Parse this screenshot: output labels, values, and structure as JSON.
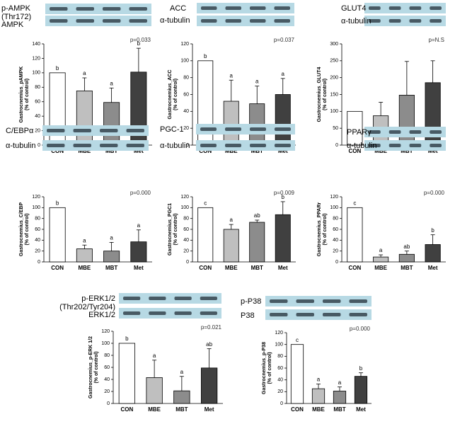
{
  "chart_data": [
    {
      "type": "bar",
      "blot_labels": [
        "p-AMPK",
        "(Thr172)",
        "AMPK"
      ],
      "y_label": [
        "Gastrocnemius_pAMPK",
        "(% of control)"
      ],
      "p_value": "p=0.033",
      "categories": [
        "CON",
        "MBE",
        "MBT",
        "Met"
      ],
      "values": [
        100,
        75,
        59,
        101
      ],
      "errors": [
        0,
        18,
        20,
        33
      ],
      "letters": [
        "b",
        "a",
        "a",
        "b"
      ],
      "colors": [
        "#ffffff",
        "#bfbfbf",
        "#8c8c8c",
        "#404040"
      ],
      "ylim": [
        0,
        140
      ],
      "yticks": [
        0,
        20,
        40,
        60,
        80,
        100,
        120,
        140
      ]
    },
    {
      "type": "bar",
      "blot_labels": [
        "ACC",
        "α-tubulin"
      ],
      "y_label": [
        "Gastrocnemius_ACC",
        "(% of control)"
      ],
      "p_value": "p=0.037",
      "categories": [
        "CON",
        "MBE",
        "MBT",
        "Met"
      ],
      "values": [
        100,
        52,
        49,
        60
      ],
      "errors": [
        0,
        25,
        21,
        19
      ],
      "letters": [
        "b",
        "a",
        "a",
        "a"
      ],
      "colors": [
        "#ffffff",
        "#bfbfbf",
        "#8c8c8c",
        "#404040"
      ],
      "ylim": [
        0,
        120
      ],
      "yticks": [
        0,
        20,
        40,
        60,
        80,
        100,
        120
      ]
    },
    {
      "type": "bar",
      "blot_labels": [
        "GLUT4",
        "α-tubulin"
      ],
      "y_label": [
        "Gastrocnemius_GLUT4",
        "(% of control)"
      ],
      "p_value": "p=N.S",
      "categories": [
        "CON",
        "MBE",
        "MBT",
        "Met"
      ],
      "values": [
        100,
        87,
        148,
        185
      ],
      "errors": [
        0,
        40,
        100,
        65
      ],
      "colors": [
        "#ffffff",
        "#bfbfbf",
        "#8c8c8c",
        "#404040"
      ],
      "ylim": [
        0,
        300
      ],
      "yticks": [
        0,
        50,
        100,
        150,
        200,
        250,
        300
      ]
    },
    {
      "type": "bar",
      "blot_labels": [
        "C/EBPα",
        "α-tubulin"
      ],
      "y_label": [
        "Gastrocnemius_C/EBP",
        "(% of control)"
      ],
      "p_value": "p=0.000",
      "categories": [
        "CON",
        "MBE",
        "MBT",
        "Met"
      ],
      "values": [
        100,
        24,
        20,
        37
      ],
      "errors": [
        0,
        7,
        16,
        22
      ],
      "letters": [
        "b",
        "a",
        "a",
        "a"
      ],
      "colors": [
        "#ffffff",
        "#bfbfbf",
        "#8c8c8c",
        "#404040"
      ],
      "ylim": [
        0,
        120
      ],
      "yticks": [
        0,
        20,
        40,
        60,
        80,
        100,
        120
      ]
    },
    {
      "type": "bar",
      "blot_labels": [
        "PGC-1",
        "α-tubulin"
      ],
      "y_label": [
        "Gastrocnemius_PGC1",
        "(% of control)"
      ],
      "p_value": "p=0.009",
      "categories": [
        "CON",
        "MBE",
        "MBT",
        "Met"
      ],
      "values": [
        100,
        60,
        73,
        87
      ],
      "errors": [
        0,
        9,
        4,
        24
      ],
      "letters": [
        "c",
        "a",
        "ab",
        "b"
      ],
      "colors": [
        "#ffffff",
        "#bfbfbf",
        "#8c8c8c",
        "#404040"
      ],
      "ylim": [
        0,
        120
      ],
      "yticks": [
        0,
        20,
        40,
        60,
        80,
        100,
        120
      ]
    },
    {
      "type": "bar",
      "blot_labels": [
        "PPARγ",
        "α-tubulin"
      ],
      "y_label": [
        "Gastrocnemius_PPARr",
        "(% of control)"
      ],
      "p_value": "p=0.000",
      "categories": [
        "CON",
        "MBE",
        "MBT",
        "Met"
      ],
      "values": [
        100,
        9,
        14,
        32
      ],
      "errors": [
        0,
        4,
        6,
        18
      ],
      "letters": [
        "c",
        "a",
        "ab",
        "b"
      ],
      "colors": [
        "#ffffff",
        "#bfbfbf",
        "#8c8c8c",
        "#404040"
      ],
      "ylim": [
        0,
        120
      ],
      "yticks": [
        0,
        20,
        40,
        60,
        80,
        100,
        120
      ]
    },
    {
      "type": "bar",
      "blot_labels": [
        "p-ERK1/2",
        "(Thr202/Tyr204)",
        "ERK1/2"
      ],
      "y_label": [
        "Gastrocnemius_p-ERK 1/2",
        "(% of control)"
      ],
      "p_value": "p=0.021",
      "categories": [
        "CON",
        "MBE",
        "MBT",
        "Met"
      ],
      "values": [
        100,
        43,
        21,
        59
      ],
      "errors": [
        0,
        29,
        24,
        32
      ],
      "letters": [
        "b",
        "a",
        "a",
        "ab"
      ],
      "colors": [
        "#ffffff",
        "#bfbfbf",
        "#8c8c8c",
        "#404040"
      ],
      "ylim": [
        0,
        120
      ],
      "yticks": [
        0,
        20,
        40,
        60,
        80,
        100,
        120
      ]
    },
    {
      "type": "bar",
      "blot_labels": [
        "p-P38",
        "P38"
      ],
      "y_label": [
        "Gastrocnemius_p-P38",
        "(% of control)"
      ],
      "p_value": "p=0.000",
      "categories": [
        "CON",
        "MBE",
        "MBT",
        "Met"
      ],
      "values": [
        100,
        25,
        21,
        46
      ],
      "errors": [
        0,
        8,
        7,
        6
      ],
      "letters": [
        "c",
        "a",
        "a",
        "b"
      ],
      "colors": [
        "#ffffff",
        "#bfbfbf",
        "#8c8c8c",
        "#404040"
      ],
      "ylim": [
        0,
        120
      ],
      "yticks": [
        0,
        20,
        40,
        60,
        80,
        100,
        120
      ]
    }
  ]
}
